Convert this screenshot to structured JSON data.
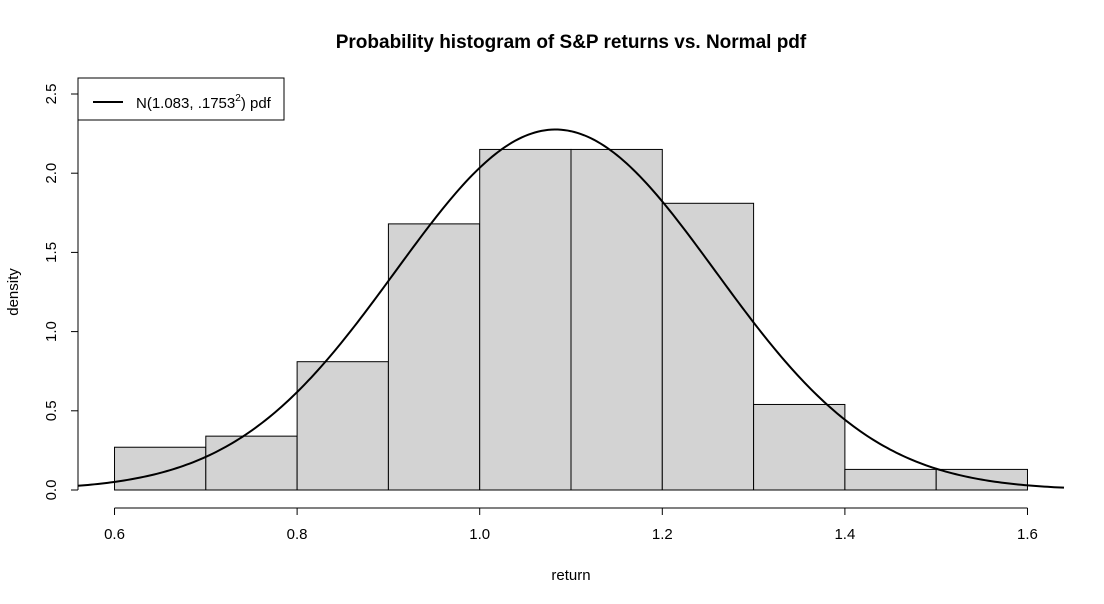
{
  "chart_data": {
    "type": "bar",
    "title": "Probability histogram of S&P returns vs. Normal pdf",
    "xlabel": "return",
    "ylabel": "density",
    "xlim": [
      0.56,
      1.64
    ],
    "ylim": [
      0,
      2.5
    ],
    "x_ticks": [
      "0.6",
      "0.8",
      "1.0",
      "1.2",
      "1.4",
      "1.6"
    ],
    "x_tick_values": [
      0.6,
      0.8,
      1.0,
      1.2,
      1.4,
      1.6
    ],
    "y_ticks": [
      "0.0",
      "0.5",
      "1.0",
      "1.5",
      "2.0",
      "2.5"
    ],
    "y_tick_values": [
      0,
      0.5,
      1.0,
      1.5,
      2.0,
      2.5
    ],
    "grid": false,
    "bin_edges": [
      0.6,
      0.7,
      0.8,
      0.9,
      1.0,
      1.1,
      1.2,
      1.3,
      1.4,
      1.5,
      1.6
    ],
    "values": [
      0.27,
      0.34,
      0.81,
      1.68,
      2.15,
      2.15,
      1.81,
      0.54,
      0.13,
      0.13
    ],
    "bar_color": "#d3d3d3",
    "curve": {
      "type": "line",
      "distribution": "normal",
      "mean": 1.083,
      "sd": 0.1753,
      "color": "#000000"
    },
    "legend": {
      "position": "top-left",
      "label_main": "N(1.083, .1753",
      "label_sup": "2",
      "label_tail": ") pdf"
    }
  }
}
